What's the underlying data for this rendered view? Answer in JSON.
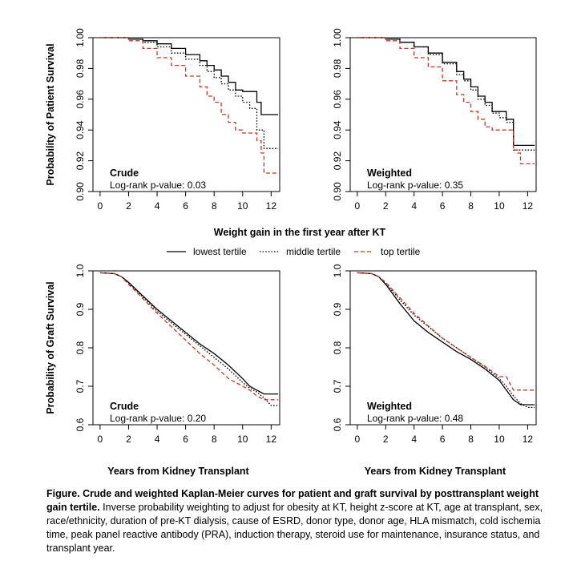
{
  "legend": {
    "entries": [
      {
        "label": "lowest tertile",
        "style": "solid",
        "color": "#000000"
      },
      {
        "label": "middle tertile",
        "style": "dotted",
        "color": "#000000"
      },
      {
        "label": "top tertile",
        "style": "dashed",
        "color": "#c0392b"
      }
    ]
  },
  "shared_xlabel_top": "Weight gain in the first year after KT",
  "caption": {
    "bold": "Figure. Crude and weighted Kaplan-Meier curves for patient and graft survival by posttransplant weight gain tertile.",
    "text": " Inverse probability weighting to adjust for obesity at KT, height z-score at KT, age at transplant, sex, race/ethnicity, duration of pre-KT dialysis, cause of ESRD, donor type, donor age, HLA mismatch, cold ischemia time, peak panel reactive antibody (PRA), induction therapy, steroid use for maintenance, insurance status, and transplant year."
  },
  "chart_data": [
    {
      "type": "line",
      "panel": "top-left",
      "title": "Crude",
      "annotation": "Log-rank p-value: 0.03",
      "ylabel": "Probability of Patient Survival",
      "xlabel": "",
      "xlim": [
        -0.5,
        12.6
      ],
      "ylim": [
        0.9,
        1.0
      ],
      "xticks": [
        "0",
        "2",
        "4",
        "6",
        "8",
        "10",
        "12"
      ],
      "yticks": [
        "0.90",
        "0.92",
        "0.94",
        "0.96",
        "0.98",
        "1.00"
      ],
      "step": true,
      "series": [
        {
          "name": "lowest tertile",
          "x": [
            0,
            1,
            2,
            3,
            4,
            5,
            6,
            7,
            7.5,
            8,
            8.5,
            9,
            9.5,
            10,
            10.5,
            11,
            11.3,
            12.5
          ],
          "y": [
            1.0,
            1.0,
            0.999,
            0.998,
            0.996,
            0.993,
            0.989,
            0.985,
            0.982,
            0.979,
            0.975,
            0.971,
            0.966,
            0.965,
            0.965,
            0.958,
            0.95,
            0.95
          ]
        },
        {
          "name": "middle tertile",
          "x": [
            0,
            1,
            2,
            3,
            4,
            5,
            6,
            7,
            7.5,
            8,
            8.5,
            9,
            9.5,
            10,
            10.5,
            11,
            11.3,
            11.5,
            12.5
          ],
          "y": [
            1.0,
            1.0,
            0.999,
            0.997,
            0.994,
            0.99,
            0.986,
            0.982,
            0.978,
            0.974,
            0.97,
            0.966,
            0.962,
            0.958,
            0.954,
            0.94,
            0.94,
            0.928,
            0.928
          ]
        },
        {
          "name": "top tertile",
          "x": [
            0,
            1,
            2,
            3,
            4,
            5,
            6,
            7,
            7.5,
            8,
            8.5,
            9,
            9.5,
            10,
            10.5,
            11,
            11.3,
            11.5,
            12.5
          ],
          "y": [
            1.0,
            1.0,
            0.998,
            0.993,
            0.987,
            0.982,
            0.975,
            0.968,
            0.962,
            0.958,
            0.95,
            0.945,
            0.94,
            0.938,
            0.938,
            0.933,
            0.925,
            0.912,
            0.912
          ]
        }
      ]
    },
    {
      "type": "line",
      "panel": "top-right",
      "title": "Weighted",
      "annotation": "Log-rank p-value: 0.35",
      "ylabel": "",
      "xlabel": "",
      "xlim": [
        -0.5,
        12.6
      ],
      "ylim": [
        0.9,
        1.0
      ],
      "xticks": [
        "0",
        "2",
        "4",
        "6",
        "8",
        "10",
        "12"
      ],
      "yticks": [
        "0.90",
        "0.92",
        "0.94",
        "0.96",
        "0.98",
        "1.00"
      ],
      "step": true,
      "series": [
        {
          "name": "lowest tertile",
          "x": [
            0,
            1,
            2,
            3,
            4,
            5,
            6,
            7,
            7.5,
            8,
            8.5,
            9,
            9.5,
            10,
            10.5,
            11,
            11.3,
            12.5
          ],
          "y": [
            1.0,
            1.0,
            0.999,
            0.997,
            0.994,
            0.99,
            0.984,
            0.978,
            0.973,
            0.968,
            0.962,
            0.958,
            0.952,
            0.952,
            0.947,
            0.93,
            0.93,
            0.93
          ]
        },
        {
          "name": "middle tertile",
          "x": [
            0,
            1,
            2,
            3,
            4,
            5,
            6,
            7,
            7.5,
            8,
            8.5,
            9,
            9.5,
            10,
            10.5,
            11,
            11.3,
            12.5
          ],
          "y": [
            1.0,
            1.0,
            0.999,
            0.997,
            0.994,
            0.989,
            0.983,
            0.976,
            0.972,
            0.966,
            0.96,
            0.956,
            0.951,
            0.948,
            0.945,
            0.927,
            0.927,
            0.927
          ]
        },
        {
          "name": "top tertile",
          "x": [
            0,
            1,
            2,
            3,
            4,
            5,
            6,
            7,
            7.5,
            8,
            8.5,
            9,
            9.5,
            10,
            10.5,
            11,
            11.3,
            11.5,
            12.5
          ],
          "y": [
            1.0,
            1.0,
            0.998,
            0.993,
            0.987,
            0.981,
            0.972,
            0.963,
            0.958,
            0.952,
            0.947,
            0.942,
            0.94,
            0.94,
            0.94,
            0.927,
            0.925,
            0.918,
            0.918
          ]
        }
      ]
    },
    {
      "type": "line",
      "panel": "bottom-left",
      "title": "Crude",
      "annotation": "Log-rank p-value: 0.20",
      "ylabel": "Probability of Graft Survival",
      "xlabel": "Years from Kidney Transplant",
      "xlim": [
        -0.5,
        12.6
      ],
      "ylim": [
        0.6,
        1.0
      ],
      "xticks": [
        "0",
        "2",
        "4",
        "6",
        "8",
        "10",
        "12"
      ],
      "yticks": [
        "0.6",
        "0.7",
        "0.8",
        "0.9",
        "1.0"
      ],
      "step": false,
      "series": [
        {
          "name": "lowest tertile",
          "x": [
            0,
            1,
            1.5,
            2,
            3,
            4,
            5,
            6,
            7,
            8,
            9,
            10,
            10.5,
            11,
            11.5,
            12.5
          ],
          "y": [
            0.995,
            0.993,
            0.985,
            0.97,
            0.935,
            0.9,
            0.87,
            0.84,
            0.81,
            0.785,
            0.755,
            0.72,
            0.7,
            0.69,
            0.68,
            0.68
          ]
        },
        {
          "name": "middle tertile",
          "x": [
            0,
            1,
            1.5,
            2,
            3,
            4,
            5,
            6,
            7,
            8,
            9,
            10,
            10.5,
            11,
            11.5,
            12,
            12.5
          ],
          "y": [
            0.995,
            0.993,
            0.985,
            0.968,
            0.932,
            0.895,
            0.865,
            0.835,
            0.805,
            0.775,
            0.745,
            0.71,
            0.695,
            0.685,
            0.67,
            0.65,
            0.65
          ]
        },
        {
          "name": "top tertile",
          "x": [
            0,
            1,
            1.5,
            2,
            3,
            4,
            5,
            6,
            7,
            8,
            9,
            10,
            10.5,
            11,
            11.5,
            12.5
          ],
          "y": [
            0.995,
            0.993,
            0.985,
            0.965,
            0.928,
            0.89,
            0.855,
            0.82,
            0.785,
            0.755,
            0.72,
            0.7,
            0.69,
            0.675,
            0.665,
            0.665
          ]
        }
      ]
    },
    {
      "type": "line",
      "panel": "bottom-right",
      "title": "Weighted",
      "annotation": "Log-rank p-value: 0.48",
      "ylabel": "",
      "xlabel": "Years from Kidney Transplant",
      "xlim": [
        -0.5,
        12.6
      ],
      "ylim": [
        0.6,
        1.0
      ],
      "xticks": [
        "0",
        "2",
        "4",
        "6",
        "8",
        "10",
        "12"
      ],
      "yticks": [
        "0.6",
        "0.7",
        "0.8",
        "0.9",
        "1.0"
      ],
      "step": false,
      "series": [
        {
          "name": "lowest tertile",
          "x": [
            0,
            1,
            1.5,
            2,
            3,
            4,
            5,
            6,
            7,
            8,
            9,
            10,
            10.5,
            11,
            11.5,
            12.5
          ],
          "y": [
            0.995,
            0.993,
            0.985,
            0.965,
            0.915,
            0.87,
            0.84,
            0.815,
            0.79,
            0.77,
            0.745,
            0.715,
            0.69,
            0.665,
            0.652,
            0.652
          ]
        },
        {
          "name": "middle tertile",
          "x": [
            0,
            1,
            1.5,
            2,
            3,
            4,
            5,
            6,
            7,
            8,
            9,
            10,
            10.5,
            11,
            11.5,
            12,
            12.5
          ],
          "y": [
            0.995,
            0.993,
            0.985,
            0.968,
            0.925,
            0.885,
            0.855,
            0.825,
            0.8,
            0.775,
            0.75,
            0.72,
            0.7,
            0.675,
            0.655,
            0.645,
            0.645
          ]
        },
        {
          "name": "top tertile",
          "x": [
            0,
            1,
            1.5,
            2,
            3,
            4,
            5,
            6,
            7,
            8,
            9,
            10,
            10.5,
            11,
            11.5,
            12.5
          ],
          "y": [
            0.995,
            0.993,
            0.985,
            0.97,
            0.93,
            0.89,
            0.857,
            0.825,
            0.8,
            0.775,
            0.752,
            0.725,
            0.725,
            0.69,
            0.69,
            0.69
          ]
        }
      ]
    }
  ]
}
